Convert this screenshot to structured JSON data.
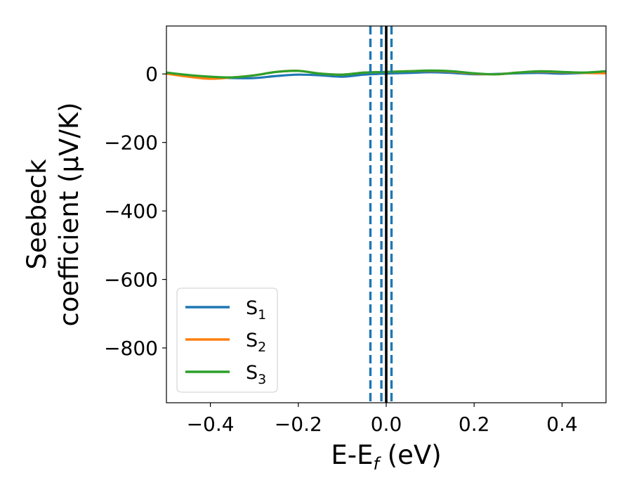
{
  "chart_data": {
    "type": "line",
    "xlabel": {
      "main": "E-E",
      "sub": "f",
      "tail": " (eV)"
    },
    "ylabel": {
      "line1": "Seebeck",
      "line2": "coefficient  (μV/K)"
    },
    "xlim": [
      -0.5,
      0.5
    ],
    "ylim": [
      -960,
      140
    ],
    "xticks": [
      -0.4,
      -0.2,
      0.0,
      0.2,
      0.4
    ],
    "xtick_labels": [
      "−0.4",
      "−0.2",
      "0.0",
      "0.2",
      "0.4"
    ],
    "yticks": [
      0,
      -200,
      -400,
      -600,
      -800
    ],
    "ytick_labels": [
      "0",
      "−200",
      "−400",
      "−600",
      "−800"
    ],
    "grid": false,
    "legend_position": "bottom-left",
    "series": [
      {
        "name": "S",
        "sub": "1",
        "color": "#1f77b4",
        "x": [
          -0.5,
          -0.45,
          -0.4,
          -0.35,
          -0.3,
          -0.25,
          -0.2,
          -0.15,
          -0.1,
          -0.05,
          0.0,
          0.05,
          0.1,
          0.15,
          0.2,
          0.25,
          0.3,
          0.35,
          0.4,
          0.45,
          0.5
        ],
        "y": [
          2,
          -4,
          -10,
          -12,
          -12,
          -6,
          -2,
          -4,
          -8,
          -2,
          1,
          3,
          5,
          3,
          -1,
          0,
          2,
          3,
          1,
          3,
          6
        ]
      },
      {
        "name": "S",
        "sub": "2",
        "color": "#ff7f0e",
        "x": [
          -0.5,
          -0.45,
          -0.4,
          -0.35,
          -0.3,
          -0.25,
          -0.2,
          -0.15,
          -0.1,
          -0.05,
          0.0,
          0.05,
          0.1,
          0.15,
          0.2,
          0.25,
          0.3,
          0.35,
          0.4,
          0.45,
          0.5
        ],
        "y": [
          1,
          -8,
          -14,
          -10,
          -4,
          6,
          9,
          1,
          -2,
          4,
          6,
          8,
          9,
          7,
          1,
          -1,
          4,
          7,
          5,
          3,
          2
        ]
      },
      {
        "name": "S",
        "sub": "3",
        "color": "#2ca02c",
        "x": [
          -0.5,
          -0.45,
          -0.4,
          -0.35,
          -0.3,
          -0.25,
          -0.2,
          -0.15,
          -0.1,
          -0.05,
          0.0,
          0.05,
          0.1,
          0.15,
          0.2,
          0.25,
          0.3,
          0.35,
          0.4,
          0.45,
          0.5
        ],
        "y": [
          4,
          -3,
          -8,
          -10,
          -4,
          6,
          9,
          1,
          -2,
          4,
          6,
          8,
          10,
          8,
          2,
          -1,
          4,
          8,
          6,
          4,
          8
        ]
      }
    ],
    "vlines": [
      {
        "x": -0.036,
        "style": "dashed",
        "color": "#1f77b4"
      },
      {
        "x": -0.011,
        "style": "dashed",
        "color": "#1f77b4"
      },
      {
        "x": 0.012,
        "style": "dashed",
        "color": "#1f77b4"
      },
      {
        "x": 0.0,
        "style": "solid",
        "color": "#000000"
      }
    ]
  }
}
